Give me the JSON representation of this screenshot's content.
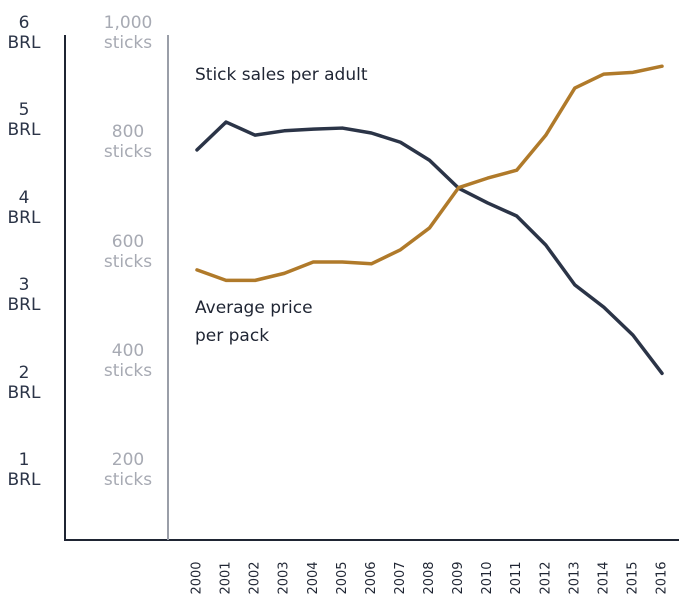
{
  "chart_data": {
    "type": "line",
    "categories": [
      "2000",
      "2001",
      "2002",
      "2003",
      "2004",
      "2005",
      "2006",
      "2007",
      "2008",
      "2009",
      "2010",
      "2011",
      "2012",
      "2013",
      "2014",
      "2015",
      "2016"
    ],
    "series": [
      {
        "name": "Stick sales per adult",
        "color": "#2b3447",
        "axis": "y2",
        "values": [
          786,
          837,
          813,
          821,
          824,
          826,
          817,
          800,
          767,
          716,
          689,
          665,
          612,
          539,
          498,
          447,
          377
        ]
      },
      {
        "name": "Average price per pack",
        "color": "#b07a2a",
        "axis": "y",
        "values": [
          3.29,
          3.17,
          3.17,
          3.25,
          3.38,
          3.38,
          3.36,
          3.52,
          3.77,
          4.23,
          4.34,
          4.43,
          4.83,
          5.37,
          5.53,
          5.55,
          5.62
        ]
      }
    ],
    "ylim": [
      0.2,
      6
    ],
    "yticks": [
      {
        "value": 1,
        "label": "1 BRL"
      },
      {
        "value": 2,
        "label": "2 BRL"
      },
      {
        "value": 3,
        "label": "3 BRL"
      },
      {
        "value": 4,
        "label": "4 BRL"
      },
      {
        "value": 5,
        "label": "5 BRL"
      },
      {
        "value": 6,
        "label": "6 BRL"
      }
    ],
    "y2lim": [
      72,
      1000
    ],
    "y2ticks": [
      {
        "value": 200,
        "label": "200 sticks"
      },
      {
        "value": 400,
        "label": "400 sticks"
      },
      {
        "value": 600,
        "label": "600 sticks"
      },
      {
        "value": 800,
        "label": "800 sticks"
      },
      {
        "value": 1000,
        "label": "1,000 sticks"
      }
    ],
    "grid": false
  }
}
